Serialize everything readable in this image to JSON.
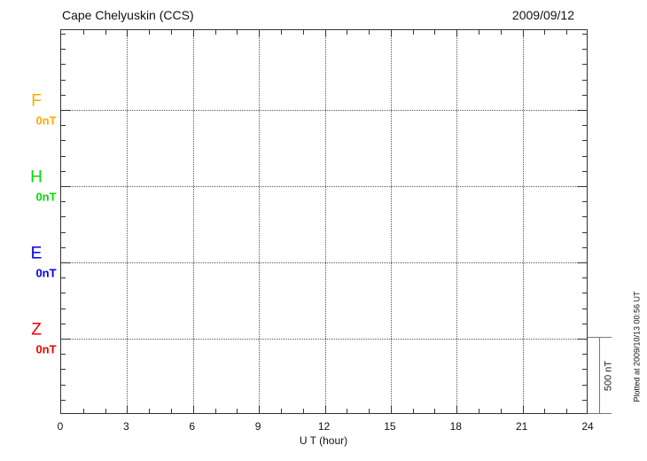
{
  "header": {
    "title": "Cape Chelyuskin (CCS)",
    "date": "2009/09/12"
  },
  "channels": [
    {
      "label": "F",
      "baseline_label": "0nT",
      "color": "#FFAA00"
    },
    {
      "label": "H",
      "baseline_label": "0nT",
      "color": "#00DD00"
    },
    {
      "label": "E",
      "baseline_label": "0nT",
      "color": "#0000EE"
    },
    {
      "label": "Z",
      "baseline_label": "0nT",
      "color": "#EE0000"
    }
  ],
  "xaxis": {
    "label": "U T (hour)",
    "tick_labels": [
      "0",
      "3",
      "6",
      "9",
      "12",
      "15",
      "18",
      "21",
      "24"
    ]
  },
  "scale_bar": {
    "label": "500 nT"
  },
  "footer_note": "Plotted at 2009/10/13 00:56 UT",
  "chart_data": {
    "type": "line",
    "title": "Cape Chelyuskin (CCS)",
    "date": "2009/09/12",
    "xlabel": "U T (hour)",
    "x_range": [
      0,
      24
    ],
    "x_ticks": [
      0,
      3,
      6,
      9,
      12,
      15,
      18,
      21,
      24
    ],
    "x_minor_tick_step_hours": 1,
    "grid": true,
    "y_baseline_spacing_nT": 500,
    "y_minor_tick_nT": 100,
    "scale_bar_label": "500 nT",
    "series": [
      {
        "name": "F",
        "color": "#FFAA00",
        "baseline_nT": 0,
        "values": []
      },
      {
        "name": "H",
        "color": "#00DD00",
        "baseline_nT": 0,
        "values": []
      },
      {
        "name": "E",
        "color": "#0000EE",
        "baseline_nT": 0,
        "values": []
      },
      {
        "name": "Z",
        "color": "#EE0000",
        "baseline_nT": 0,
        "values": []
      }
    ],
    "annotations": [
      "Plotted at 2009/10/13 00:56 UT"
    ],
    "note": "Empty magnetogram grid - no data traces plotted for this day"
  }
}
